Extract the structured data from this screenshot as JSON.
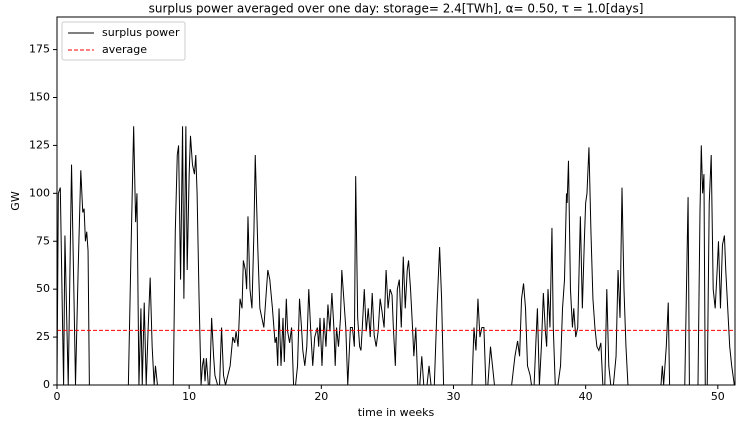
{
  "chart_data": {
    "type": "line",
    "title": "surplus power averaged over one day: storage= 2.4[TWh], α=  0.50, τ =  1.0[days]",
    "xlabel": "time in weeks",
    "ylabel": "GW",
    "xlim": [
      0,
      51.3
    ],
    "xticks": [
      0,
      10,
      20,
      30,
      40,
      50
    ],
    "ylim": [
      0,
      192
    ],
    "yticks": [
      0,
      25,
      50,
      75,
      100,
      125,
      150,
      175
    ],
    "legend": "upper left",
    "series": [
      {
        "name": "surplus power",
        "color": "#000000",
        "dash": "solid",
        "x": [
          0,
          0.1,
          0.25,
          0.4,
          0.5,
          0.6,
          0.75,
          0.85,
          1.1,
          1.3,
          1.4,
          1.6,
          1.8,
          1.95,
          2.05,
          2.15,
          2.25,
          2.35,
          2.45,
          5.4,
          5.6,
          5.8,
          5.95,
          6.05,
          6.2,
          6.35,
          6.45,
          6.6,
          6.75,
          6.9,
          7.05,
          7.2,
          7.35,
          7.45,
          7.6,
          8.8,
          8.95,
          9.1,
          9.2,
          9.35,
          9.5,
          9.6,
          9.75,
          9.85,
          10.0,
          10.1,
          10.25,
          10.4,
          10.5,
          10.6,
          10.75,
          10.9,
          11.0,
          11.1,
          11.2,
          11.3,
          11.45,
          11.55,
          11.7,
          11.85,
          11.95,
          12.15,
          12.3,
          12.45,
          12.6,
          12.75,
          13.1,
          13.3,
          13.45,
          13.55,
          13.7,
          13.85,
          14.0,
          14.1,
          14.25,
          14.35,
          14.45,
          14.6,
          14.75,
          14.9,
          15.0,
          15.2,
          15.35,
          15.5,
          15.65,
          15.8,
          15.95,
          16.1,
          16.3,
          16.5,
          16.6,
          16.7,
          16.8,
          16.95,
          17.1,
          17.2,
          17.35,
          17.45,
          17.6,
          17.75,
          17.9,
          18.05,
          18.2,
          18.35,
          18.5,
          18.6,
          18.75,
          18.9,
          19.05,
          19.2,
          19.35,
          19.5,
          19.7,
          19.8,
          19.9,
          20.05,
          20.2,
          20.35,
          20.5,
          20.65,
          20.8,
          20.95,
          21.05,
          21.15,
          21.3,
          21.45,
          21.55,
          21.7,
          21.85,
          22.0,
          22.2,
          22.35,
          22.5,
          22.6,
          22.75,
          22.9,
          23.0,
          23.1,
          23.25,
          23.4,
          23.55,
          23.7,
          23.85,
          24.0,
          24.15,
          24.3,
          24.45,
          24.6,
          24.75,
          24.9,
          25.05,
          25.2,
          25.35,
          25.45,
          25.6,
          25.75,
          25.9,
          26.05,
          26.2,
          26.35,
          26.5,
          26.6,
          26.75,
          26.9,
          27.0,
          27.15,
          27.3,
          27.45,
          27.6,
          27.75,
          28.0,
          28.15,
          28.3,
          28.55,
          28.75,
          28.95,
          29.1,
          29.25,
          31.4,
          31.55,
          31.7,
          31.85,
          32.0,
          32.15,
          32.3,
          32.45,
          32.6,
          32.8,
          32.95,
          33.1,
          34.4,
          34.65,
          34.85,
          35.0,
          35.15,
          35.3,
          35.45,
          35.6,
          35.8,
          35.9,
          36.1,
          36.25,
          36.35,
          36.5,
          36.65,
          36.8,
          36.95,
          37.05,
          37.15,
          37.3,
          37.45,
          37.55,
          37.7,
          37.9,
          38.1,
          38.25,
          38.4,
          38.55,
          38.6,
          38.7,
          38.85,
          39.0,
          39.1,
          39.25,
          39.4,
          39.6,
          39.75,
          39.9,
          40.0,
          40.1,
          40.25,
          40.4,
          40.55,
          40.7,
          40.85,
          41.0,
          41.15,
          41.3,
          41.45,
          41.6,
          41.75,
          41.9,
          42.1,
          42.3,
          42.45,
          42.6,
          42.75,
          42.9,
          43.05,
          43.2,
          45.7,
          45.8,
          45.9,
          46.1,
          46.25,
          46.35,
          47.5,
          47.75,
          47.85,
          48.5,
          48.65,
          48.75,
          48.85,
          48.95,
          49.05,
          49.2,
          49.35,
          49.5,
          49.65,
          49.8,
          49.95,
          50.05,
          50.2,
          50.35,
          50.5,
          50.6,
          50.75,
          50.9,
          51.05,
          51.25
        ],
        "values": [
          0,
          100,
          103,
          40,
          0,
          78,
          30,
          0,
          115,
          40,
          0,
          60,
          112,
          90,
          92,
          75,
          80,
          70,
          0,
          0,
          70,
          135,
          85,
          100,
          0,
          40,
          0,
          43,
          0,
          30,
          56,
          20,
          0,
          10,
          0,
          0,
          80,
          120,
          125,
          55,
          135,
          45,
          135,
          60,
          110,
          130,
          115,
          110,
          120,
          100,
          45,
          0,
          10,
          14,
          2,
          14,
          0,
          0,
          35,
          15,
          5,
          0,
          0,
          30,
          5,
          0,
          10,
          25,
          22,
          28,
          20,
          45,
          40,
          65,
          60,
          50,
          88,
          50,
          40,
          80,
          120,
          70,
          40,
          35,
          30,
          45,
          60,
          55,
          40,
          22,
          25,
          10,
          40,
          10,
          35,
          12,
          45,
          28,
          22,
          30,
          0,
          0,
          10,
          45,
          30,
          18,
          10,
          20,
          50,
          28,
          10,
          25,
          30,
          20,
          35,
          10,
          35,
          20,
          42,
          28,
          48,
          30,
          10,
          30,
          20,
          35,
          60,
          45,
          30,
          0,
          30,
          30,
          20,
          109,
          35,
          20,
          18,
          30,
          50,
          28,
          40,
          25,
          48,
          26,
          20,
          28,
          45,
          38,
          30,
          60,
          40,
          50,
          47,
          30,
          10,
          50,
          55,
          30,
          67,
          40,
          60,
          65,
          50,
          30,
          15,
          30,
          0,
          0,
          15,
          0,
          0,
          10,
          0,
          0,
          40,
          72,
          45,
          0,
          0,
          30,
          18,
          45,
          25,
          30,
          30,
          0,
          0,
          20,
          10,
          0,
          0,
          15,
          23,
          15,
          45,
          53,
          40,
          10,
          5,
          0,
          0,
          25,
          40,
          0,
          20,
          48,
          28,
          20,
          50,
          30,
          82,
          30,
          0,
          0,
          10,
          40,
          55,
          100,
          95,
          117,
          50,
          30,
          40,
          25,
          30,
          88,
          40,
          75,
          95,
          100,
          124,
          80,
          45,
          30,
          20,
          18,
          22,
          0,
          0,
          50,
          10,
          0,
          0,
          15,
          60,
          35,
          103,
          50,
          20,
          0,
          0,
          10,
          0,
          20,
          43,
          0,
          0,
          98,
          0,
          0,
          90,
          125,
          100,
          110,
          0,
          0,
          95,
          120,
          50,
          40,
          60,
          75,
          40,
          73,
          78,
          60,
          40,
          20,
          10,
          0
        ]
      },
      {
        "name": "average",
        "color": "#ff0000",
        "dash": "dashed",
        "x": [
          0,
          51.3
        ],
        "values": [
          28.5,
          28.5
        ]
      }
    ]
  }
}
